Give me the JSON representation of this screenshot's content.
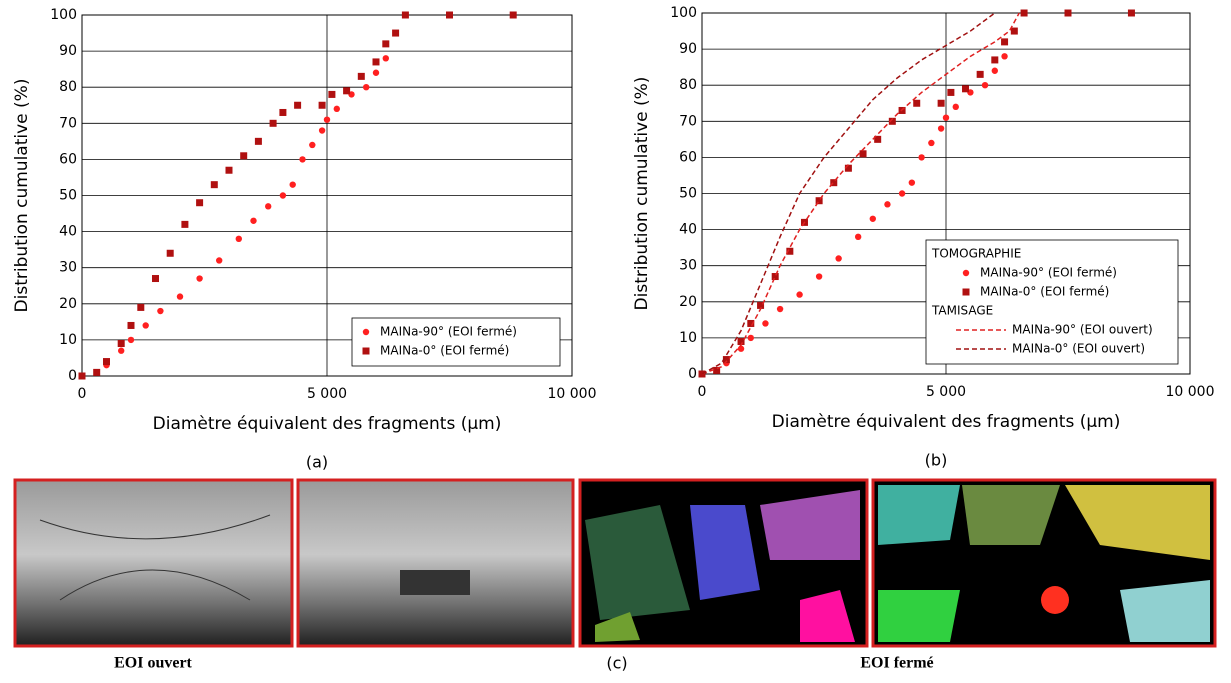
{
  "chart_data": [
    {
      "type": "line",
      "xlabel": "Diamètre équivalent des fragments (µm)",
      "ylabel": "Distribution cumulative (%)",
      "caption": "(a)",
      "xlim": [
        0,
        10000
      ],
      "ylim": [
        0,
        100
      ],
      "xticks": [
        0,
        {
          "value": 5000,
          "label": "5 000"
        },
        {
          "value": 10000,
          "label": "10 000"
        }
      ],
      "yticks": [
        0,
        10,
        20,
        30,
        40,
        50,
        60,
        70,
        80,
        90,
        100
      ],
      "grid": true,
      "legend": "lower right",
      "series": [
        {
          "name": "MAINa-90° (EOI fermé)",
          "color": "#ff2020",
          "marker": "circle",
          "x": [
            0,
            300,
            500,
            800,
            1000,
            1300,
            1600,
            2000,
            2400,
            2800,
            3200,
            3500,
            3800,
            4100,
            4300,
            4500,
            4700,
            4900,
            5000,
            5200,
            5500,
            5800,
            6000,
            6200,
            6400,
            6600,
            7500,
            8800
          ],
          "values": [
            0,
            1,
            3,
            7,
            10,
            14,
            18,
            22,
            27,
            32,
            38,
            43,
            47,
            50,
            53,
            60,
            64,
            68,
            71,
            74,
            78,
            80,
            84,
            88,
            95,
            100,
            100,
            100
          ]
        },
        {
          "name": "MAINa-0° (EOI fermé)",
          "color": "#b01010",
          "marker": "square",
          "x": [
            0,
            300,
            500,
            800,
            1000,
            1200,
            1500,
            1800,
            2100,
            2400,
            2700,
            3000,
            3300,
            3600,
            3900,
            4100,
            4400,
            4900,
            5100,
            5400,
            5700,
            6000,
            6200,
            6400,
            6600,
            7500,
            8800
          ],
          "values": [
            0,
            1,
            4,
            9,
            14,
            19,
            27,
            34,
            42,
            48,
            53,
            57,
            61,
            65,
            70,
            73,
            75,
            75,
            78,
            79,
            83,
            87,
            92,
            95,
            100,
            100,
            100
          ]
        }
      ]
    },
    {
      "type": "line",
      "xlabel": "Diamètre équivalent des fragments (µm)",
      "ylabel": "Distribution cumulative (%)",
      "caption": "(b)",
      "xlim": [
        0,
        10000
      ],
      "ylim": [
        0,
        100
      ],
      "xticks": [
        0,
        {
          "value": 5000,
          "label": "5 000"
        },
        {
          "value": 10000,
          "label": "10 000"
        }
      ],
      "yticks": [
        0,
        10,
        20,
        30,
        40,
        50,
        60,
        70,
        80,
        90,
        100
      ],
      "grid": true,
      "legend": "lower right",
      "legend_groups": [
        "TOMOGRAPHIE",
        "TAMISAGE"
      ],
      "series": [
        {
          "name": "MAINa-90° (EOI fermé)",
          "color": "#ff2020",
          "marker": "circle",
          "group": 0,
          "x": [
            0,
            300,
            500,
            800,
            1000,
            1300,
            1600,
            2000,
            2400,
            2800,
            3200,
            3500,
            3800,
            4100,
            4300,
            4500,
            4700,
            4900,
            5000,
            5200,
            5500,
            5800,
            6000,
            6200,
            6400,
            6600,
            7500,
            8800
          ],
          "values": [
            0,
            1,
            3,
            7,
            10,
            14,
            18,
            22,
            27,
            32,
            38,
            43,
            47,
            50,
            53,
            60,
            64,
            68,
            71,
            74,
            78,
            80,
            84,
            88,
            95,
            100,
            100,
            100
          ]
        },
        {
          "name": "MAINa-0° (EOI fermé)",
          "color": "#b01010",
          "marker": "square",
          "group": 0,
          "x": [
            0,
            300,
            500,
            800,
            1000,
            1200,
            1500,
            1800,
            2100,
            2400,
            2700,
            3000,
            3300,
            3600,
            3900,
            4100,
            4400,
            4900,
            5100,
            5400,
            5700,
            6000,
            6200,
            6400,
            6600,
            7500,
            8800
          ],
          "values": [
            0,
            1,
            4,
            9,
            14,
            19,
            27,
            34,
            42,
            48,
            53,
            57,
            61,
            65,
            70,
            73,
            75,
            75,
            78,
            79,
            83,
            87,
            92,
            95,
            100,
            100,
            100
          ]
        },
        {
          "name": "MAINa-90° (EOI ouvert)",
          "color": "#e02020",
          "linestyle": "dashed",
          "group": 1,
          "x": [
            0,
            400,
            800,
            1200,
            1600,
            2000,
            2500,
            3000,
            3500,
            4000,
            4500,
            5000,
            5500,
            6000,
            6300,
            6500
          ],
          "values": [
            0,
            2,
            8,
            18,
            30,
            40,
            50,
            58,
            65,
            72,
            78,
            83,
            88,
            92,
            95,
            100
          ]
        },
        {
          "name": "MAINa-0° (EOI ouvert)",
          "color": "#a01010",
          "linestyle": "dashed",
          "group": 1,
          "x": [
            0,
            400,
            800,
            1200,
            1600,
            2000,
            2500,
            3000,
            3500,
            4000,
            4500,
            5000,
            5500,
            5800,
            6000
          ],
          "values": [
            0,
            3,
            12,
            25,
            38,
            50,
            60,
            68,
            76,
            82,
            87,
            91,
            95,
            98,
            100
          ]
        }
      ]
    }
  ],
  "figure_c": {
    "caption": "(c)",
    "left_label": "EOI ouvert",
    "right_label": "EOI fermé"
  }
}
